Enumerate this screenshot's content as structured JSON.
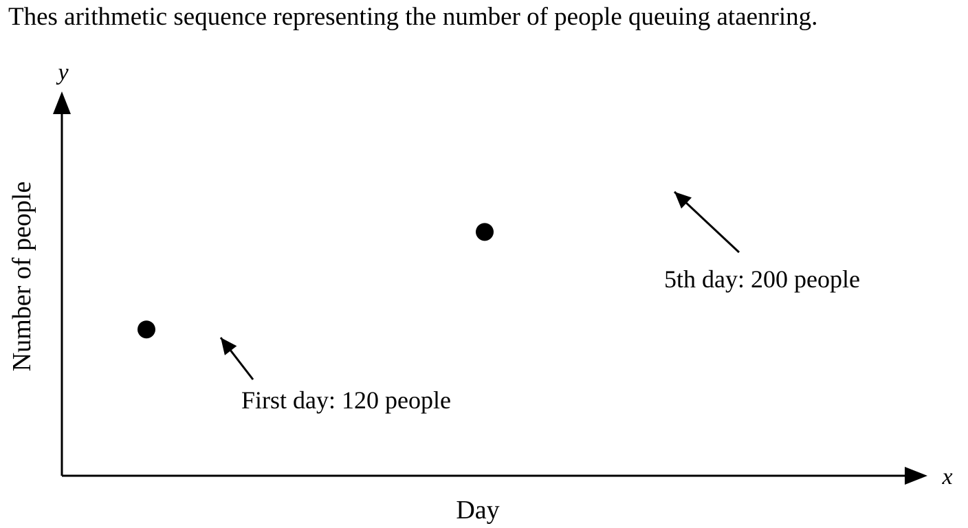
{
  "chart_data": {
    "type": "scatter",
    "title": "Thes arithmetic sequence representing the number of people queuing ataenring.",
    "xlabel": "Day",
    "ylabel": "Number of people",
    "x_axis_symbol": "x",
    "y_axis_symbol": "y",
    "grid": false,
    "xlim": [
      0,
      10
    ],
    "ylim": [
      0,
      300
    ],
    "points": [
      {
        "x": 1,
        "y": 120,
        "label": "First day: 120 people"
      },
      {
        "x": 5,
        "y": 200,
        "label": "5th day: 200 people"
      }
    ]
  },
  "colors": {
    "ink": "#000000",
    "background": "#ffffff"
  }
}
